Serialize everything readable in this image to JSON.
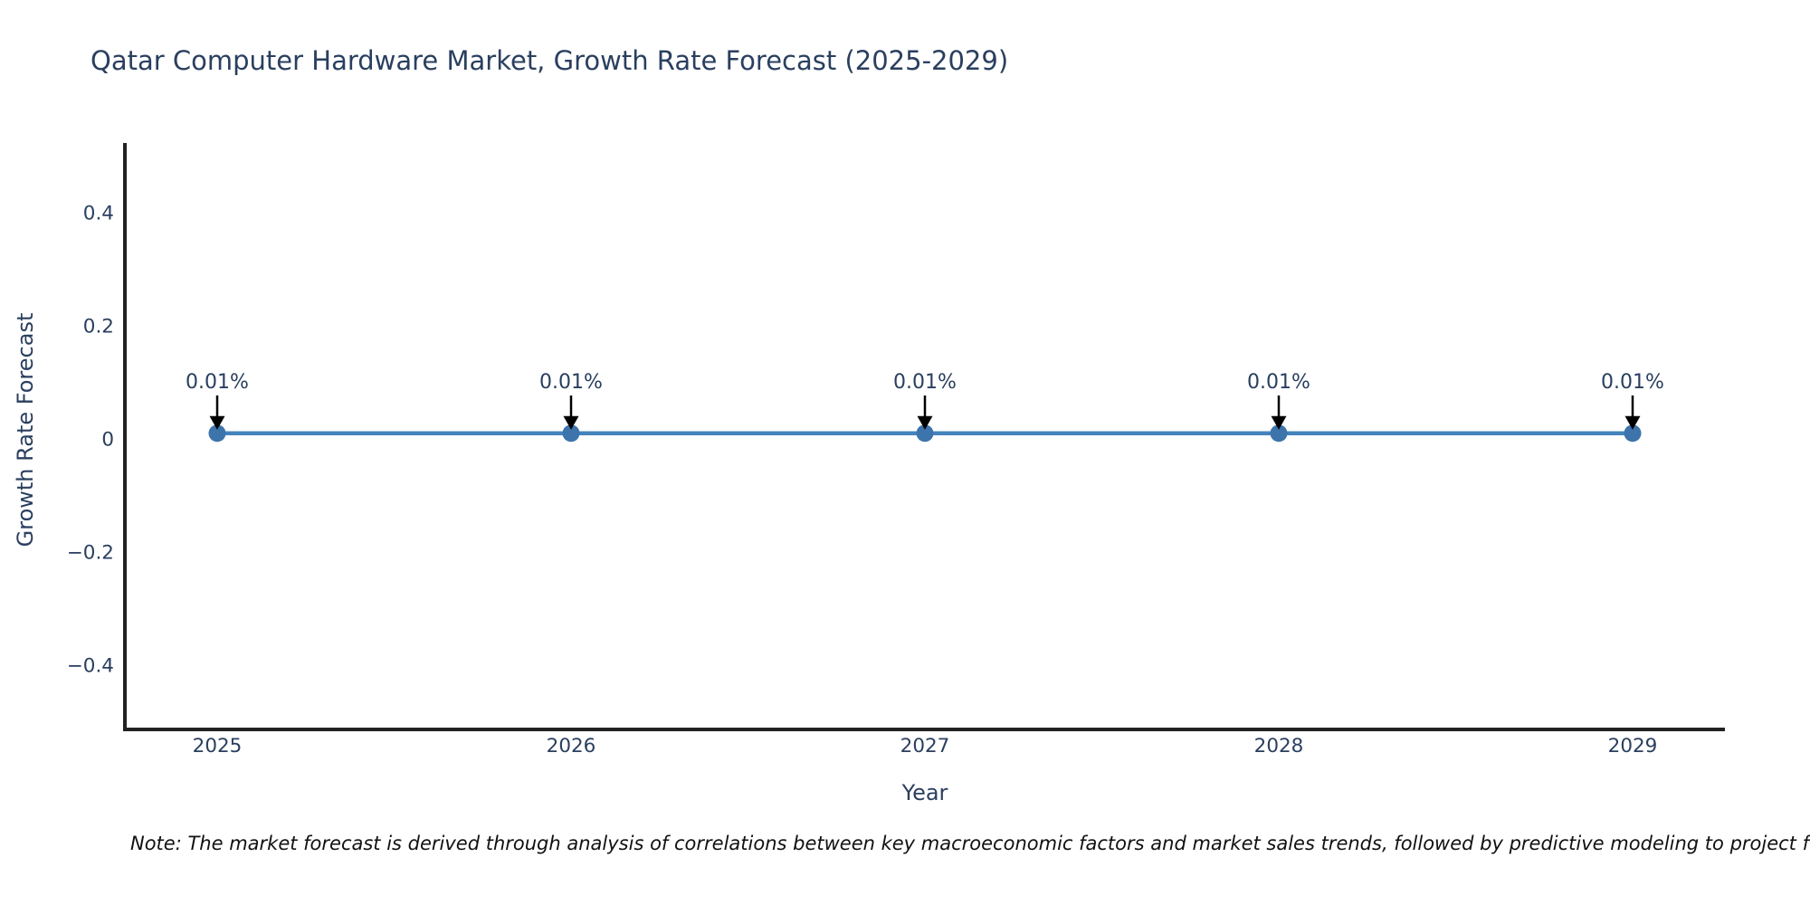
{
  "chart_data": {
    "type": "line",
    "title": "Qatar Computer Hardware Market, Growth Rate Forecast (2025-2029)",
    "xlabel": "Year",
    "ylabel": "Growth Rate Forecast",
    "x": [
      "2025",
      "2026",
      "2027",
      "2028",
      "2029"
    ],
    "series": [
      {
        "name": "Growth Rate Forecast",
        "values": [
          0.01,
          0.01,
          0.01,
          0.01,
          0.01
        ],
        "unit": "%"
      }
    ],
    "point_labels": [
      "0.01%",
      "0.01%",
      "0.01%",
      "0.01%",
      "0.01%"
    ],
    "yticks": [
      {
        "label": "0.4",
        "value": 0.4
      },
      {
        "label": "0.2",
        "value": 0.2
      },
      {
        "label": "0",
        "value": 0
      },
      {
        "label": "−0.2",
        "value": -0.2
      },
      {
        "label": "−0.4",
        "value": -0.4
      }
    ],
    "ylim": [
      -0.51,
      0.52
    ],
    "grid": false,
    "legend": false,
    "colors": {
      "line": "#4384bc",
      "marker": "#3d74ab",
      "axis_spine": "#222222",
      "text": "#2a3f5f",
      "annotation_text": "#2a3f5f",
      "arrow": "#000000",
      "note_text": "#111111"
    },
    "note": "Note: The market forecast is derived through analysis of correlations between key macroeconomic factors and market sales trends, followed by predictive modeling to project future sales."
  }
}
